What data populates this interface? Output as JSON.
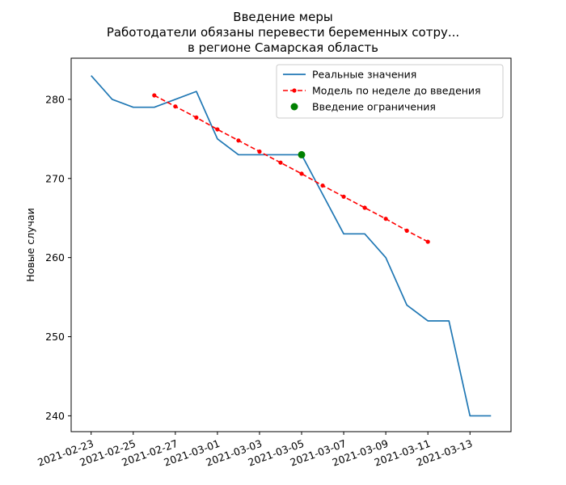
{
  "chart_data": {
    "type": "line",
    "title": [
      "Введение меры",
      "Работодатели обязаны перевести беременных сотру...",
      "в регионе Самарская область"
    ],
    "xlabel": "",
    "ylabel": "Новые случаи",
    "ylim": [
      238,
      285.2
    ],
    "yticks": [
      240,
      250,
      260,
      270,
      280
    ],
    "xticks": [
      "2021-02-23",
      "2021-02-25",
      "2021-02-27",
      "2021-03-01",
      "2021-03-03",
      "2021-03-05",
      "2021-03-07",
      "2021-03-09",
      "2021-03-11",
      "2021-03-13"
    ],
    "grid": false,
    "legend_position": "top-right",
    "series": [
      {
        "name": "Реальные значения",
        "style": "solid",
        "color": "#1f77b4",
        "x": [
          "2021-02-23",
          "2021-02-24",
          "2021-02-25",
          "2021-02-26",
          "2021-02-27",
          "2021-02-28",
          "2021-03-01",
          "2021-03-02",
          "2021-03-03",
          "2021-03-04",
          "2021-03-05",
          "2021-03-06",
          "2021-03-07",
          "2021-03-08",
          "2021-03-09",
          "2021-03-10",
          "2021-03-11",
          "2021-03-12",
          "2021-03-13",
          "2021-03-14"
        ],
        "y": [
          283,
          280,
          279,
          279,
          280,
          281,
          275,
          273,
          273,
          273,
          273,
          268,
          263,
          263,
          260,
          254,
          252,
          252,
          240,
          240
        ]
      },
      {
        "name": "Модель по неделе до введения",
        "style": "dashed-dot-markers",
        "color": "#ff0000",
        "x": [
          "2021-02-26",
          "2021-02-27",
          "2021-02-28",
          "2021-03-01",
          "2021-03-02",
          "2021-03-03",
          "2021-03-04",
          "2021-03-05",
          "2021-03-06",
          "2021-03-07",
          "2021-03-08",
          "2021-03-09",
          "2021-03-10",
          "2021-03-11"
        ],
        "y": [
          280.5,
          279.1,
          277.7,
          276.2,
          274.8,
          273.4,
          272.0,
          270.6,
          269.1,
          267.7,
          266.3,
          264.9,
          263.4,
          262.0
        ]
      },
      {
        "name": "Введение ограничения",
        "style": "marker",
        "color": "#008000",
        "x": [
          "2021-03-05"
        ],
        "y": [
          273
        ]
      }
    ]
  }
}
